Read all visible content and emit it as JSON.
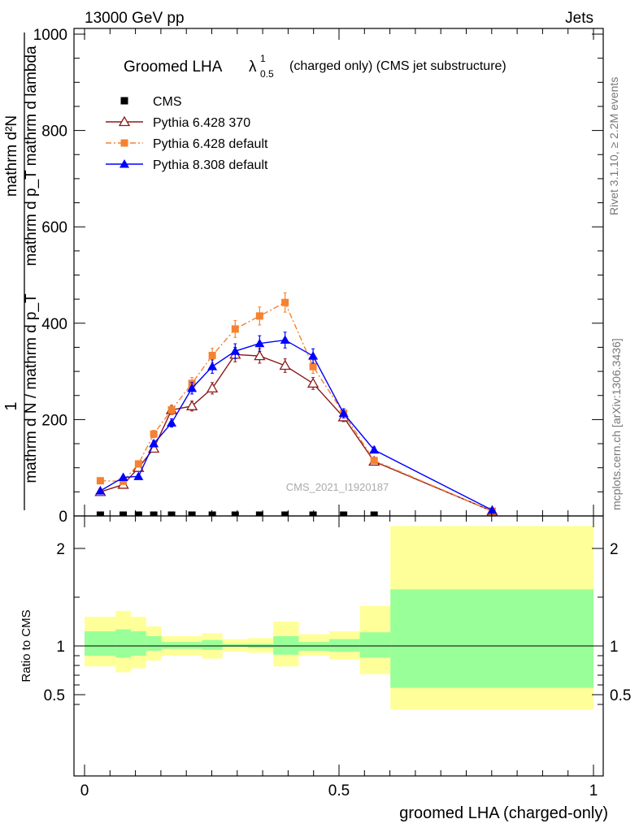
{
  "header": {
    "energy_label": "13000 GeV pp",
    "category_label": "Jets"
  },
  "side": {
    "rivet_label": "Rivet 3.1.10, ≥ 2.2M events",
    "mcplots_label": "mcplots.cern.ch [arXiv:1306.3436]"
  },
  "chart_data": [
    {
      "type": "line",
      "title": "Groomed LHA",
      "title_lambda_sup": "1",
      "title_lambda_sub": "0.5",
      "title_suffix": "(charged only) (CMS jet substructure)",
      "watermark": "CMS_2021_I1920187",
      "xlabel": "groomed LHA (charged-only)",
      "ylabel_numerator_top": "mathrm d²N",
      "ylabel_numerator_bottom": "mathrm d p_T mathrm d lambda",
      "ylabel_prefix": "1",
      "ylabel_denominator": "mathrm d N / mathrm d p_T",
      "xlim": [
        0,
        1
      ],
      "ylim": [
        0,
        1000
      ],
      "xticks": [
        "0",
        "0.5",
        "1"
      ],
      "yticks": [
        "0",
        "200",
        "400",
        "600",
        "800",
        "1000"
      ],
      "legend_position": "top-left",
      "series": [
        {
          "name": "CMS",
          "color": "#000000",
          "marker": "square",
          "x": [
            0.031,
            0.076,
            0.106,
            0.136,
            0.171,
            0.211,
            0.251,
            0.296,
            0.344,
            0.394,
            0.449,
            0.509,
            0.569
          ],
          "y": [
            0,
            0,
            0,
            0,
            0,
            0,
            0,
            0,
            0,
            0,
            0,
            0,
            0
          ]
        },
        {
          "name": "Pythia 6.428 370",
          "color": "#8b1a1a",
          "marker": "open-triangle",
          "x": [
            0.031,
            0.076,
            0.106,
            0.136,
            0.171,
            0.211,
            0.251,
            0.296,
            0.344,
            0.394,
            0.449,
            0.509,
            0.569,
            0.801
          ],
          "y": [
            50,
            65,
            100,
            140,
            220,
            228,
            265,
            335,
            332,
            312,
            275,
            205,
            113,
            10
          ]
        },
        {
          "name": "Pythia 6.428 default",
          "color": "#f58231",
          "marker": "square",
          "x": [
            0.031,
            0.076,
            0.106,
            0.136,
            0.171,
            0.211,
            0.251,
            0.296,
            0.344,
            0.394,
            0.449,
            0.509,
            0.569,
            0.801
          ],
          "y": [
            73,
            72,
            108,
            170,
            220,
            275,
            333,
            388,
            415,
            443,
            310,
            213,
            115,
            10
          ]
        },
        {
          "name": "Pythia 8.308 default",
          "color": "#0000ff",
          "marker": "triangle",
          "x": [
            0.031,
            0.076,
            0.106,
            0.136,
            0.171,
            0.211,
            0.251,
            0.296,
            0.344,
            0.394,
            0.449,
            0.509,
            0.569,
            0.801
          ],
          "y": [
            52,
            80,
            82,
            150,
            193,
            265,
            310,
            342,
            358,
            365,
            332,
            213,
            137,
            12
          ]
        }
      ]
    },
    {
      "type": "area",
      "ylabel": "Ratio to CMS",
      "xlim": [
        0,
        1
      ],
      "ylim": [
        0.35,
        2.3
      ],
      "xticks": [
        "0",
        "0.5",
        "1"
      ],
      "yticks": [
        "0.5",
        "1",
        "2"
      ],
      "bands": {
        "outer_color": "#ffff99",
        "inner_color": "#99ff99",
        "bins": [
          {
            "x0": 0.0,
            "x1": 0.061,
            "inner": [
              0.9,
              1.15
            ],
            "outer": [
              0.79,
              1.3
            ]
          },
          {
            "x0": 0.061,
            "x1": 0.091,
            "inner": [
              0.88,
              1.17
            ],
            "outer": [
              0.73,
              1.36
            ]
          },
          {
            "x0": 0.091,
            "x1": 0.121,
            "inner": [
              0.9,
              1.15
            ],
            "outer": [
              0.77,
              1.3
            ]
          },
          {
            "x0": 0.121,
            "x1": 0.151,
            "inner": [
              0.95,
              1.1
            ],
            "outer": [
              0.85,
              1.2
            ]
          },
          {
            "x0": 0.151,
            "x1": 0.191,
            "inner": [
              0.97,
              1.04
            ],
            "outer": [
              0.9,
              1.1
            ]
          },
          {
            "x0": 0.191,
            "x1": 0.231,
            "inner": [
              0.97,
              1.04
            ],
            "outer": [
              0.9,
              1.1
            ]
          },
          {
            "x0": 0.231,
            "x1": 0.271,
            "inner": [
              0.96,
              1.06
            ],
            "outer": [
              0.87,
              1.13
            ]
          },
          {
            "x0": 0.271,
            "x1": 0.321,
            "inner": [
              0.99,
              1.02
            ],
            "outer": [
              0.94,
              1.07
            ]
          },
          {
            "x0": 0.321,
            "x1": 0.371,
            "inner": [
              0.98,
              1.02
            ],
            "outer": [
              0.93,
              1.08
            ]
          },
          {
            "x0": 0.371,
            "x1": 0.421,
            "inner": [
              0.91,
              1.1
            ],
            "outer": [
              0.79,
              1.25
            ]
          },
          {
            "x0": 0.421,
            "x1": 0.481,
            "inner": [
              0.95,
              1.04
            ],
            "outer": [
              0.9,
              1.12
            ]
          },
          {
            "x0": 0.481,
            "x1": 0.541,
            "inner": [
              0.94,
              1.07
            ],
            "outer": [
              0.86,
              1.15
            ]
          },
          {
            "x0": 0.541,
            "x1": 0.601,
            "inner": [
              0.88,
              1.14
            ],
            "outer": [
              0.71,
              1.41
            ]
          },
          {
            "x0": 0.601,
            "x1": 1.0,
            "inner": [
              0.57,
              1.58
            ],
            "outer": [
              0.35,
              2.23
            ]
          }
        ]
      }
    }
  ]
}
